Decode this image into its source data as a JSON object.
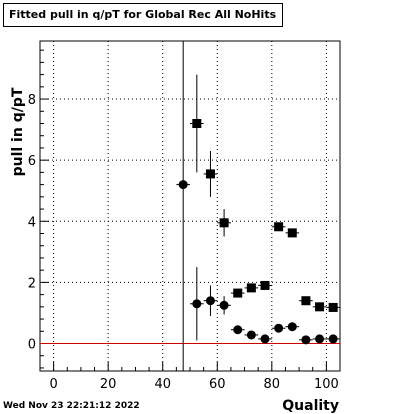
{
  "title": "Fitted pull in q/pT for Global Rec All NoHits",
  "timestamp": "Wed Nov 23 22:21:12 2022",
  "colors": {
    "reference_line": "#d00000",
    "markers": "#000000",
    "grid": "#000000"
  },
  "chart_data": {
    "type": "scatter",
    "title": "Fitted pull in q/pT for Global Rec All NoHits",
    "xlabel": "Quality",
    "ylabel": "pull in q/pT",
    "xlim": [
      -5,
      105
    ],
    "ylim": [
      -0.9,
      9.9
    ],
    "xticks": [
      0,
      20,
      40,
      60,
      80,
      100
    ],
    "yticks": [
      0,
      2,
      4,
      6,
      8
    ],
    "grid": true,
    "reference_line_y": 0,
    "series": [
      {
        "marker": "square",
        "points": [
          {
            "x": 52.5,
            "y": 7.2,
            "yerr": 1.6
          },
          {
            "x": 57.5,
            "y": 5.55,
            "yerr": 0.75
          },
          {
            "x": 62.5,
            "y": 3.95,
            "yerr": 0.45
          },
          {
            "x": 67.5,
            "y": 1.65,
            "yerr": 0.0
          },
          {
            "x": 72.5,
            "y": 1.82,
            "yerr": 0.0
          },
          {
            "x": 77.5,
            "y": 1.9,
            "yerr": 0.0
          },
          {
            "x": 82.5,
            "y": 3.82,
            "yerr": 0.0
          },
          {
            "x": 87.5,
            "y": 3.62,
            "yerr": 0.0
          },
          {
            "x": 92.5,
            "y": 1.4,
            "yerr": 0.0
          },
          {
            "x": 97.5,
            "y": 1.2,
            "yerr": 0.0
          },
          {
            "x": 102.5,
            "y": 1.18,
            "yerr": 0.0
          }
        ]
      },
      {
        "marker": "circle",
        "points": [
          {
            "x": 47.5,
            "y": 5.2,
            "yerr": 13.0
          },
          {
            "x": 52.5,
            "y": 1.3,
            "yerr": 1.2
          },
          {
            "x": 57.5,
            "y": 1.4,
            "yerr": 0.5
          },
          {
            "x": 62.5,
            "y": 1.25,
            "yerr": 0.3
          },
          {
            "x": 67.5,
            "y": 0.45,
            "yerr": 0.0
          },
          {
            "x": 72.5,
            "y": 0.28,
            "yerr": 0.0
          },
          {
            "x": 77.5,
            "y": 0.15,
            "yerr": 0.0
          },
          {
            "x": 82.5,
            "y": 0.5,
            "yerr": 0.0
          },
          {
            "x": 87.5,
            "y": 0.55,
            "yerr": 0.0
          },
          {
            "x": 92.5,
            "y": 0.12,
            "yerr": 0.0
          },
          {
            "x": 97.5,
            "y": 0.15,
            "yerr": 0.0
          },
          {
            "x": 102.5,
            "y": 0.15,
            "yerr": 0.0
          }
        ]
      }
    ]
  }
}
